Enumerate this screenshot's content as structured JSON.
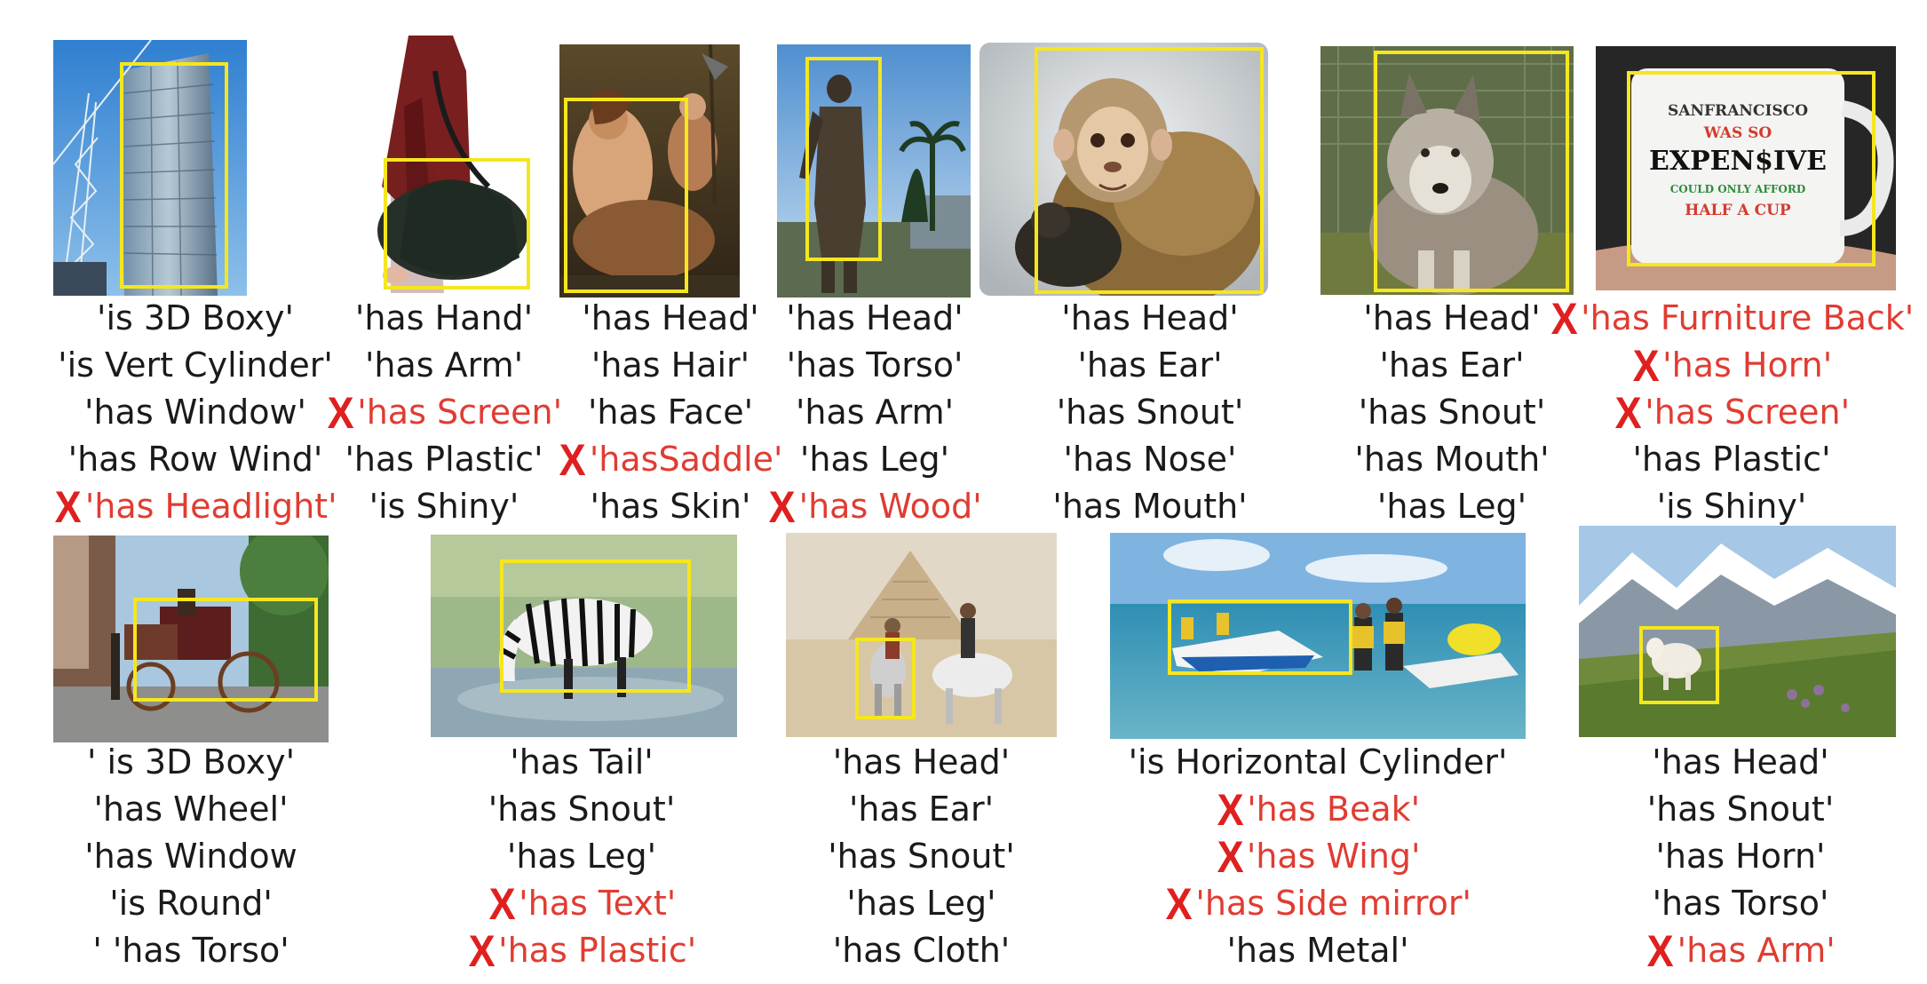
{
  "legend": {
    "wrong_marker": "X"
  },
  "colors": {
    "bbox": "#f5e61e",
    "wrong_text": "#e03c32",
    "x_mark": "#e01f1f",
    "correct_text": "#1a1a1a"
  },
  "examples": [
    {
      "id": "building",
      "attributes": [
        {
          "text": "'is 3D Boxy'",
          "wrong": false
        },
        {
          "text": "'is Vert Cylinder'",
          "wrong": false
        },
        {
          "text": "'has Window'",
          "wrong": false
        },
        {
          "text": "'has Row Wind'",
          "wrong": false
        },
        {
          "text": "'has Headlight'",
          "wrong": true
        }
      ]
    },
    {
      "id": "bag",
      "attributes": [
        {
          "text": "'has Hand'",
          "wrong": false
        },
        {
          "text": "'has Arm'",
          "wrong": false
        },
        {
          "text": "'has Screen'",
          "wrong": true
        },
        {
          "text": "'has Plastic'",
          "wrong": false
        },
        {
          "text": "'is Shiny'",
          "wrong": false
        }
      ]
    },
    {
      "id": "painting",
      "attributes": [
        {
          "text": "'has Head'",
          "wrong": false
        },
        {
          "text": "'has Hair'",
          "wrong": false
        },
        {
          "text": "'has Face'",
          "wrong": false
        },
        {
          "text": "'hasSaddle'",
          "wrong": true
        },
        {
          "text": "'has Skin'",
          "wrong": false
        }
      ]
    },
    {
      "id": "statue",
      "attributes": [
        {
          "text": "'has Head'",
          "wrong": false
        },
        {
          "text": "'has Torso'",
          "wrong": false
        },
        {
          "text": "'has Arm'",
          "wrong": false
        },
        {
          "text": "'has Leg'",
          "wrong": false
        },
        {
          "text": "'has Wood'",
          "wrong": true
        }
      ]
    },
    {
      "id": "monkey",
      "attributes": [
        {
          "text": "'has Head'",
          "wrong": false
        },
        {
          "text": "'has Ear'",
          "wrong": false
        },
        {
          "text": "'has Snout'",
          "wrong": false
        },
        {
          "text": "'has Nose'",
          "wrong": false
        },
        {
          "text": "'has Mouth'",
          "wrong": false
        }
      ]
    },
    {
      "id": "wolf",
      "attributes": [
        {
          "text": "'has Head'",
          "wrong": false
        },
        {
          "text": "'has Ear'",
          "wrong": false
        },
        {
          "text": "'has Snout'",
          "wrong": false
        },
        {
          "text": "'has Mouth'",
          "wrong": false
        },
        {
          "text": "'has Leg'",
          "wrong": false
        }
      ]
    },
    {
      "id": "mug",
      "mug_text": [
        "SANFRANCISCO",
        "WAS SO",
        "EXPEN$IVE",
        "COULD ONLY AFFORD",
        "HALF A CUP"
      ],
      "attributes": [
        {
          "text": "'has Furniture Back'",
          "wrong": true
        },
        {
          "text": "'has Horn'",
          "wrong": true
        },
        {
          "text": "'has Screen'",
          "wrong": true
        },
        {
          "text": "'has Plastic'",
          "wrong": false
        },
        {
          "text": "'is Shiny'",
          "wrong": false
        }
      ]
    },
    {
      "id": "carriage",
      "attributes": [
        {
          "text": "' is 3D Boxy'",
          "wrong": false
        },
        {
          "text": "'has Wheel'",
          "wrong": false
        },
        {
          "text": "'has Window",
          "wrong": false
        },
        {
          "text": "'is Round'",
          "wrong": false
        },
        {
          "text": "' 'has Torso'",
          "wrong": false
        }
      ]
    },
    {
      "id": "zebra",
      "attributes": [
        {
          "text": "'has Tail'",
          "wrong": false
        },
        {
          "text": "'has Snout'",
          "wrong": false
        },
        {
          "text": "'has Leg'",
          "wrong": false
        },
        {
          "text": "'has Text'",
          "wrong": true
        },
        {
          "text": "'has Plastic'",
          "wrong": true
        }
      ]
    },
    {
      "id": "donkey",
      "attributes": [
        {
          "text": "'has Head'",
          "wrong": false
        },
        {
          "text": "'has Ear'",
          "wrong": false
        },
        {
          "text": "'has Snout'",
          "wrong": false
        },
        {
          "text": "'has Leg'",
          "wrong": false
        },
        {
          "text": "'has Cloth'",
          "wrong": false
        }
      ]
    },
    {
      "id": "jetski",
      "attributes": [
        {
          "text": "'is Horizontal Cylinder'",
          "wrong": false
        },
        {
          "text": "'has Beak'",
          "wrong": true
        },
        {
          "text": "'has Wing'",
          "wrong": true
        },
        {
          "text": "'has Side mirror'",
          "wrong": true
        },
        {
          "text": "'has Metal'",
          "wrong": false
        }
      ]
    },
    {
      "id": "goat",
      "attributes": [
        {
          "text": "'has Head'",
          "wrong": false
        },
        {
          "text": "'has Snout'",
          "wrong": false
        },
        {
          "text": "'has Horn'",
          "wrong": false
        },
        {
          "text": "'has Torso'",
          "wrong": false
        },
        {
          "text": "'has Arm'",
          "wrong": true
        }
      ]
    }
  ]
}
